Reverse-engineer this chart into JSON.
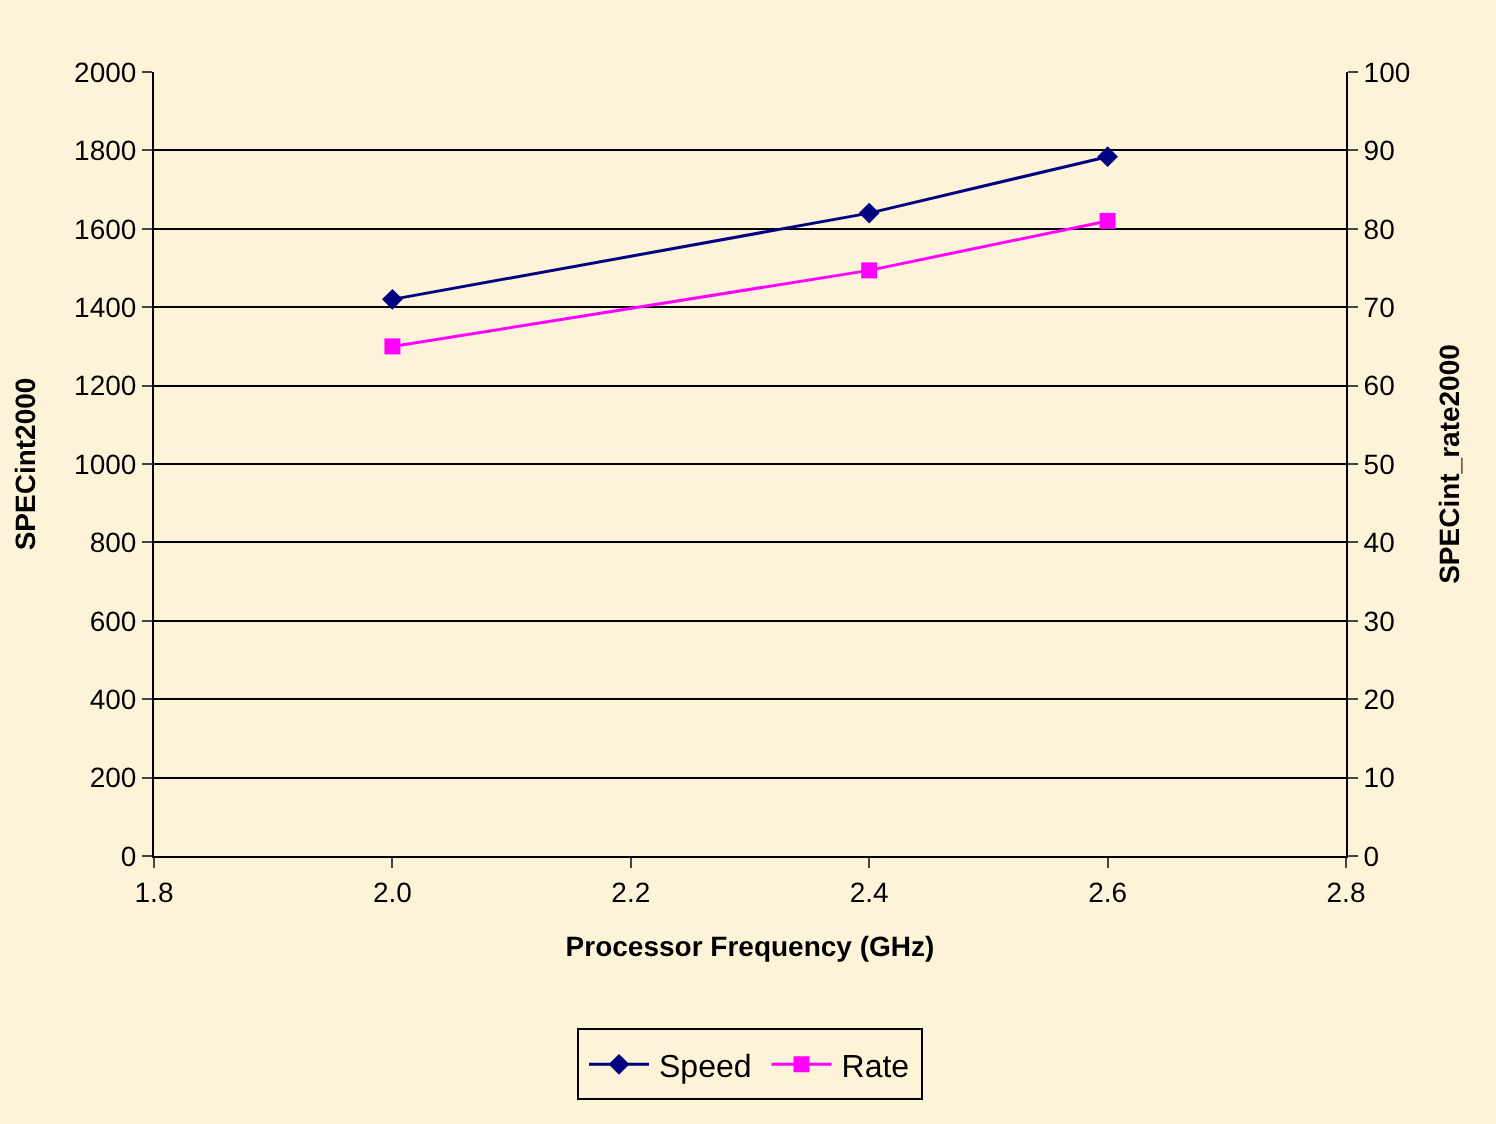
{
  "chart_data": {
    "type": "line",
    "xlabel": "Processor Frequency (GHz)",
    "ylabel": "SPECint2000",
    "y2label": "SPECint_rate2000",
    "x": [
      2.0,
      2.4,
      2.6
    ],
    "series": [
      {
        "name": "Speed",
        "color": "#000080",
        "values": [
          1420,
          1640,
          1784
        ],
        "marker": "diamond"
      },
      {
        "name": "Rate",
        "color": "#ff00ff",
        "values": [
          65,
          74.7,
          81
        ],
        "axis": "y2",
        "marker": "square"
      }
    ],
    "xlim": [
      1.8,
      2.8
    ],
    "xticks": [
      {
        "value": 1.8,
        "label": "1.8"
      },
      {
        "value": 2.0,
        "label": "2.0"
      },
      {
        "value": 2.2,
        "label": "2.2"
      },
      {
        "value": 2.4,
        "label": "2.4"
      },
      {
        "value": 2.6,
        "label": "2.6"
      },
      {
        "value": 2.8,
        "label": "2.8"
      }
    ],
    "ylim": [
      0,
      2000
    ],
    "yticks": [
      0,
      200,
      400,
      600,
      800,
      1000,
      1200,
      1400,
      1600,
      1800,
      2000
    ],
    "y2lim": [
      0,
      100
    ],
    "y2ticks": [
      0,
      10,
      20,
      30,
      40,
      50,
      60,
      70,
      80,
      90,
      100
    ],
    "grid": "y",
    "legend": "bottom",
    "line_style": "solid"
  }
}
